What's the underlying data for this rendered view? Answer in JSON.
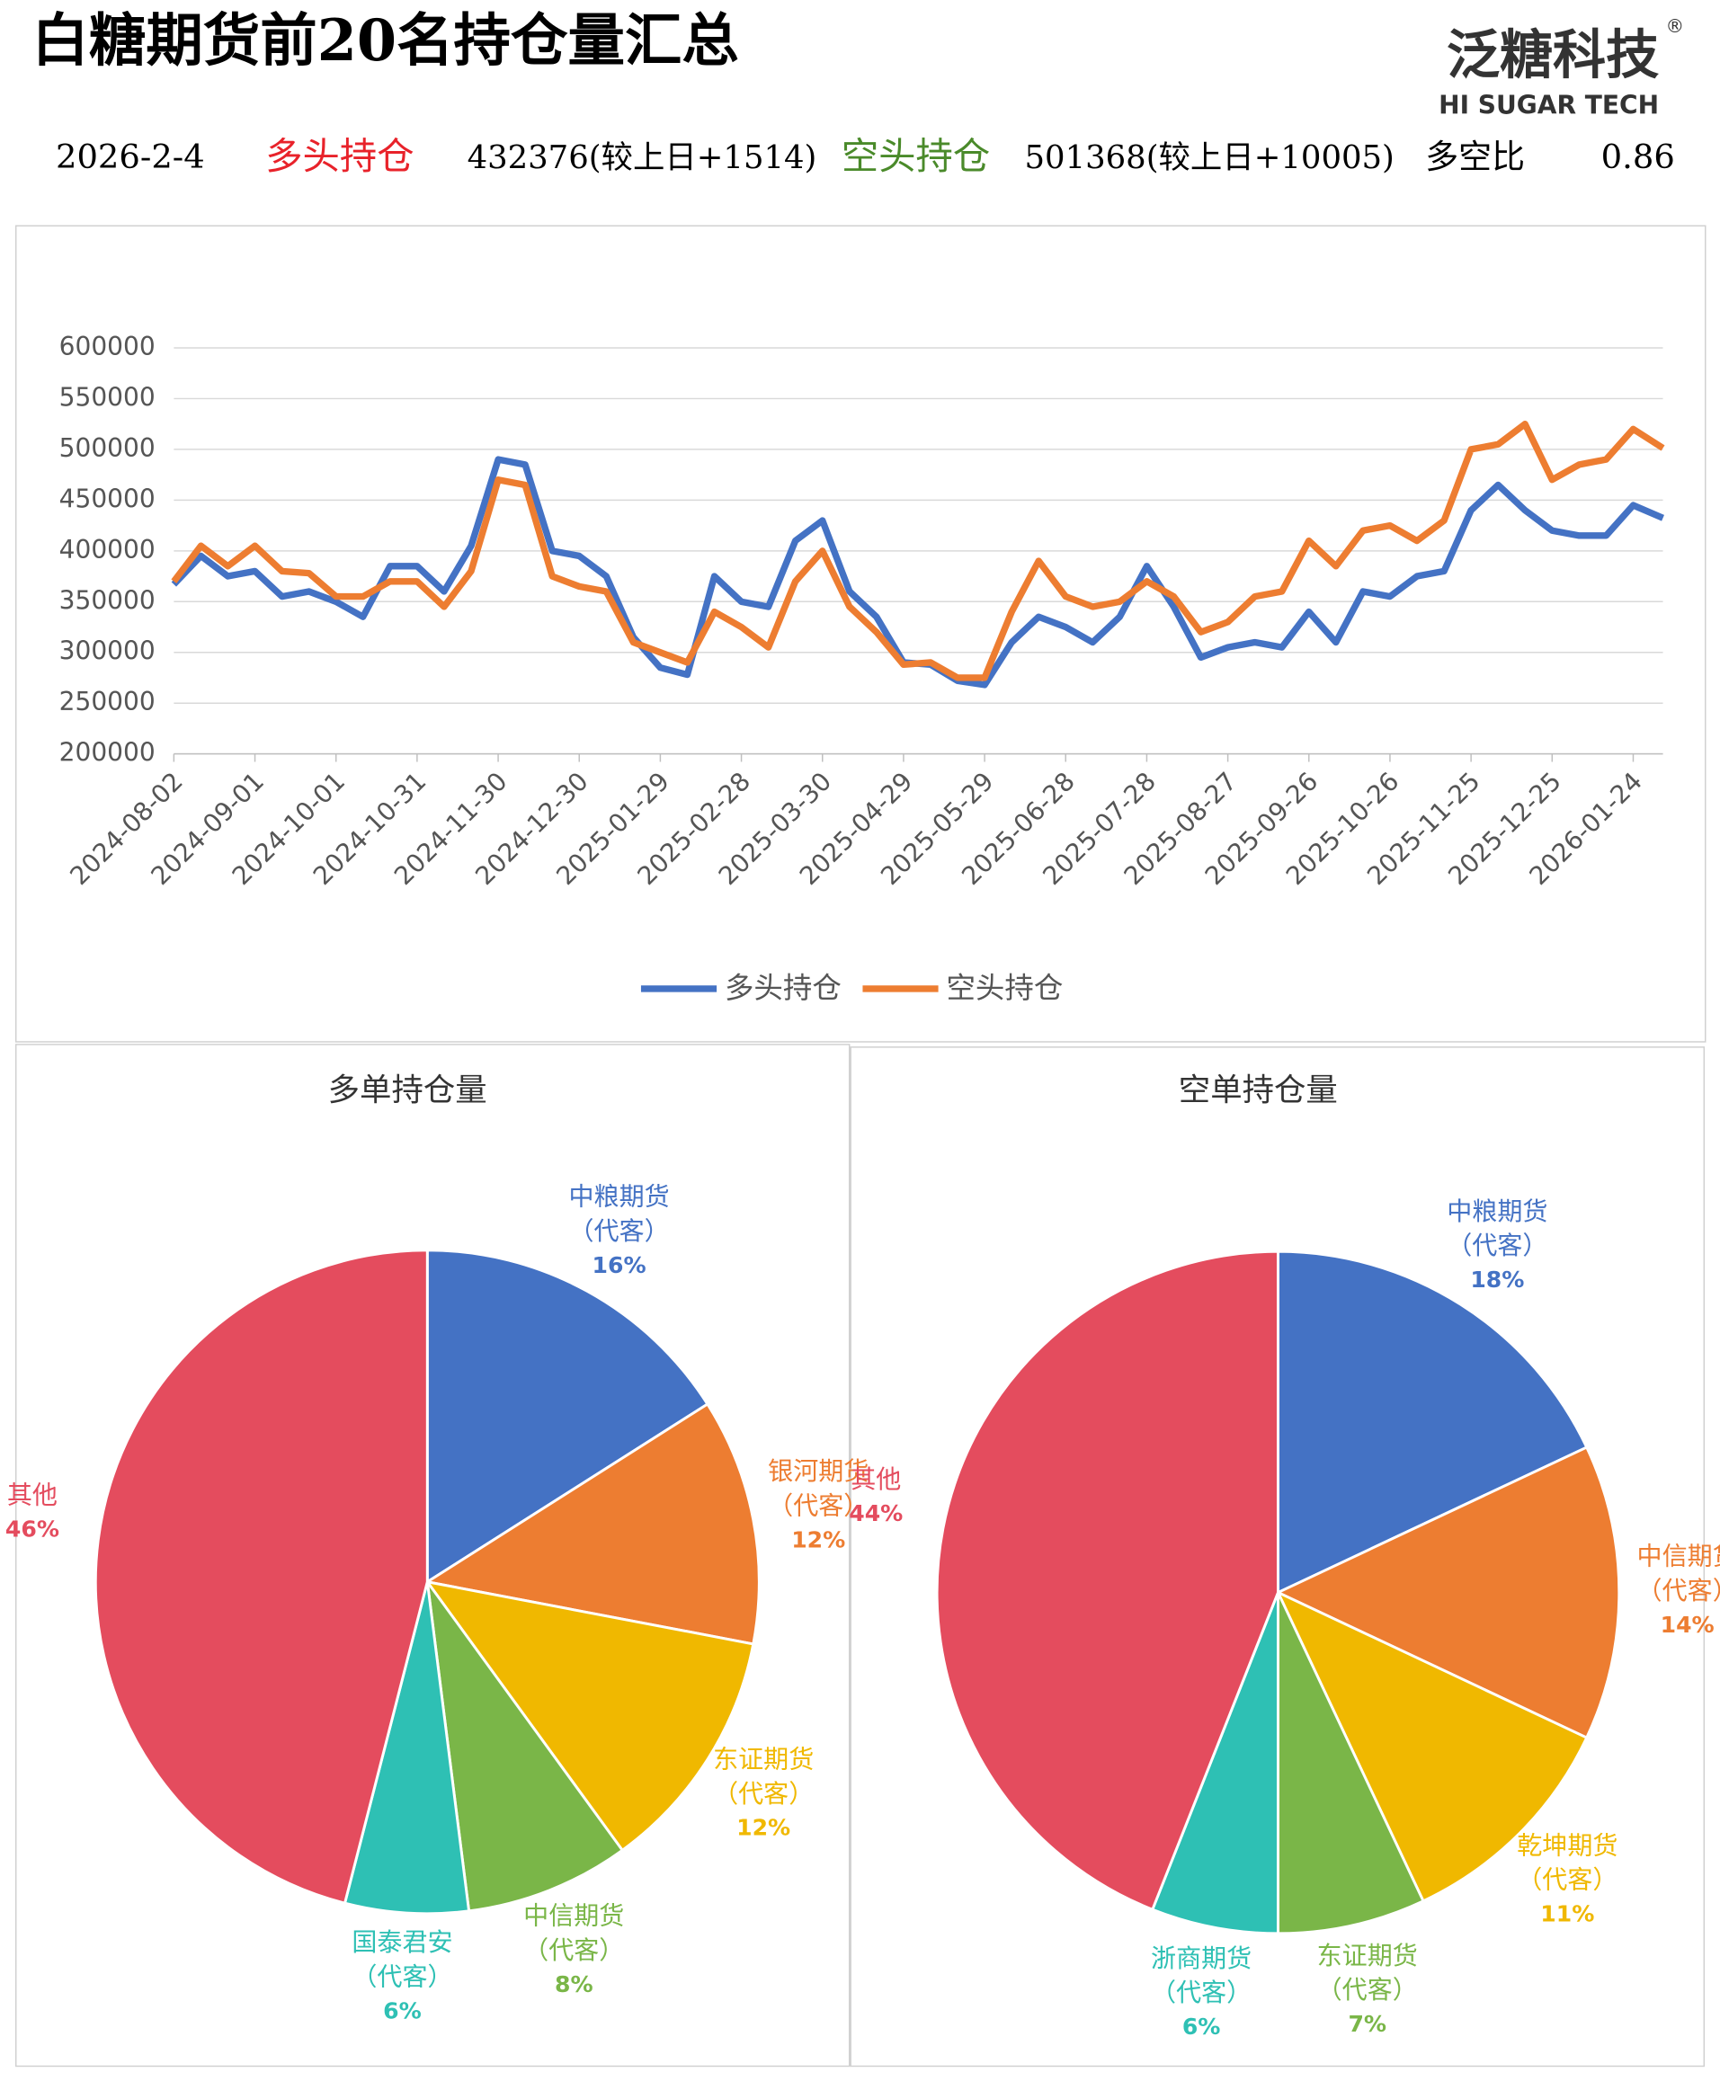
{
  "header": {
    "title": "白糖期货前20名持仓量汇总",
    "logo": "泛糖科技",
    "logo_mark": "®",
    "logo_sub": "HI SUGAR TECH",
    "date": "2026-2-4",
    "long_label": "多头持仓",
    "long_text": "432376(较上日+1514)",
    "short_label": "空头持仓",
    "short_text": "501368(较上日+10005)",
    "ratio_label": "多空比",
    "ratio": 0.86
  },
  "chart_data": [
    {
      "type": "line",
      "x": [
        "2024-08-02",
        "2024-08-12",
        "2024-08-22",
        "2024-09-01",
        "2024-09-11",
        "2024-09-21",
        "2024-10-01",
        "2024-10-11",
        "2024-10-21",
        "2024-10-31",
        "2024-11-10",
        "2024-11-20",
        "2024-11-30",
        "2024-12-10",
        "2024-12-20",
        "2024-12-30",
        "2025-01-09",
        "2025-01-19",
        "2025-01-29",
        "2025-02-08",
        "2025-02-18",
        "2025-02-28",
        "2025-03-10",
        "2025-03-20",
        "2025-03-30",
        "2025-04-09",
        "2025-04-19",
        "2025-04-29",
        "2025-05-09",
        "2025-05-19",
        "2025-05-29",
        "2025-06-08",
        "2025-06-18",
        "2025-06-28",
        "2025-07-08",
        "2025-07-18",
        "2025-07-28",
        "2025-08-07",
        "2025-08-17",
        "2025-08-27",
        "2025-09-06",
        "2025-09-16",
        "2025-09-26",
        "2025-10-06",
        "2025-10-16",
        "2025-10-26",
        "2025-11-05",
        "2025-11-15",
        "2025-11-25",
        "2025-12-05",
        "2025-12-15",
        "2025-12-25",
        "2026-01-04",
        "2026-01-14",
        "2026-01-24",
        "2026-02-04"
      ],
      "series": [
        {
          "name": "多头持仓",
          "color": "#4472c4",
          "values": [
            367000,
            395000,
            375000,
            380000,
            355000,
            360000,
            350000,
            335000,
            385000,
            385000,
            360000,
            405000,
            490000,
            485000,
            400000,
            395000,
            375000,
            315000,
            285000,
            278000,
            375000,
            350000,
            345000,
            410000,
            430000,
            360000,
            335000,
            290000,
            288000,
            272000,
            268000,
            310000,
            335000,
            325000,
            310000,
            335000,
            385000,
            345000,
            295000,
            305000,
            310000,
            305000,
            340000,
            310000,
            360000,
            355000,
            375000,
            380000,
            440000,
            465000,
            440000,
            420000,
            415000,
            415000,
            445000,
            432376
          ]
        },
        {
          "name": "空头持仓",
          "color": "#ed7d31",
          "values": [
            370000,
            405000,
            385000,
            405000,
            380000,
            378000,
            355000,
            355000,
            370000,
            370000,
            345000,
            380000,
            470000,
            465000,
            375000,
            365000,
            360000,
            310000,
            300000,
            290000,
            340000,
            325000,
            305000,
            370000,
            400000,
            345000,
            320000,
            288000,
            290000,
            275000,
            275000,
            340000,
            390000,
            355000,
            345000,
            350000,
            370000,
            355000,
            320000,
            330000,
            355000,
            360000,
            410000,
            385000,
            420000,
            425000,
            410000,
            430000,
            500000,
            505000,
            525000,
            470000,
            485000,
            490000,
            520000,
            501368
          ]
        }
      ],
      "xlim": [
        "2024-08-02",
        "2026-02-04"
      ],
      "xticks": [
        "2024-08-02",
        "2024-09-01",
        "2024-10-01",
        "2024-10-31",
        "2024-11-30",
        "2024-12-30",
        "2025-01-29",
        "2025-02-28",
        "2025-03-30",
        "2025-04-29",
        "2025-05-29",
        "2025-06-28",
        "2025-07-28",
        "2025-08-27",
        "2025-09-26",
        "2025-10-26",
        "2025-11-25",
        "2025-12-25",
        "2026-01-24"
      ],
      "ylim": [
        200000,
        600000
      ],
      "yticks": [
        200000,
        250000,
        300000,
        350000,
        400000,
        450000,
        500000,
        550000,
        600000
      ],
      "grid": true,
      "legend": "bottom"
    },
    {
      "type": "pie",
      "title": "多单持仓量",
      "categories": [
        "中粮期货（代客）",
        "银河期货（代客）",
        "东证期货（代客）",
        "中信期货（代客）",
        "国泰君安（代客）",
        "其他"
      ],
      "values": [
        16,
        12,
        12,
        8,
        6,
        46
      ],
      "value_labels": [
        "16%",
        "12%",
        "12%",
        "8%",
        "6%",
        "46%"
      ],
      "colors": [
        "#4472c4",
        "#ed7d31",
        "#f0b800",
        "#7ab648",
        "#2ec0b4",
        "#e44c5e"
      ]
    },
    {
      "type": "pie",
      "title": "空单持仓量",
      "categories": [
        "中粮期货（代客）",
        "中信期货（代客）",
        "乾坤期货（代客）",
        "东证期货（代客）",
        "浙商期货（代客）",
        "其他"
      ],
      "values": [
        18,
        14,
        11,
        7,
        6,
        44
      ],
      "value_labels": [
        "18%",
        "14%",
        "11%",
        "7%",
        "6%",
        "44%"
      ],
      "colors": [
        "#4472c4",
        "#ed7d31",
        "#f0b800",
        "#7ab648",
        "#2ec0b4",
        "#e44c5e"
      ]
    }
  ]
}
